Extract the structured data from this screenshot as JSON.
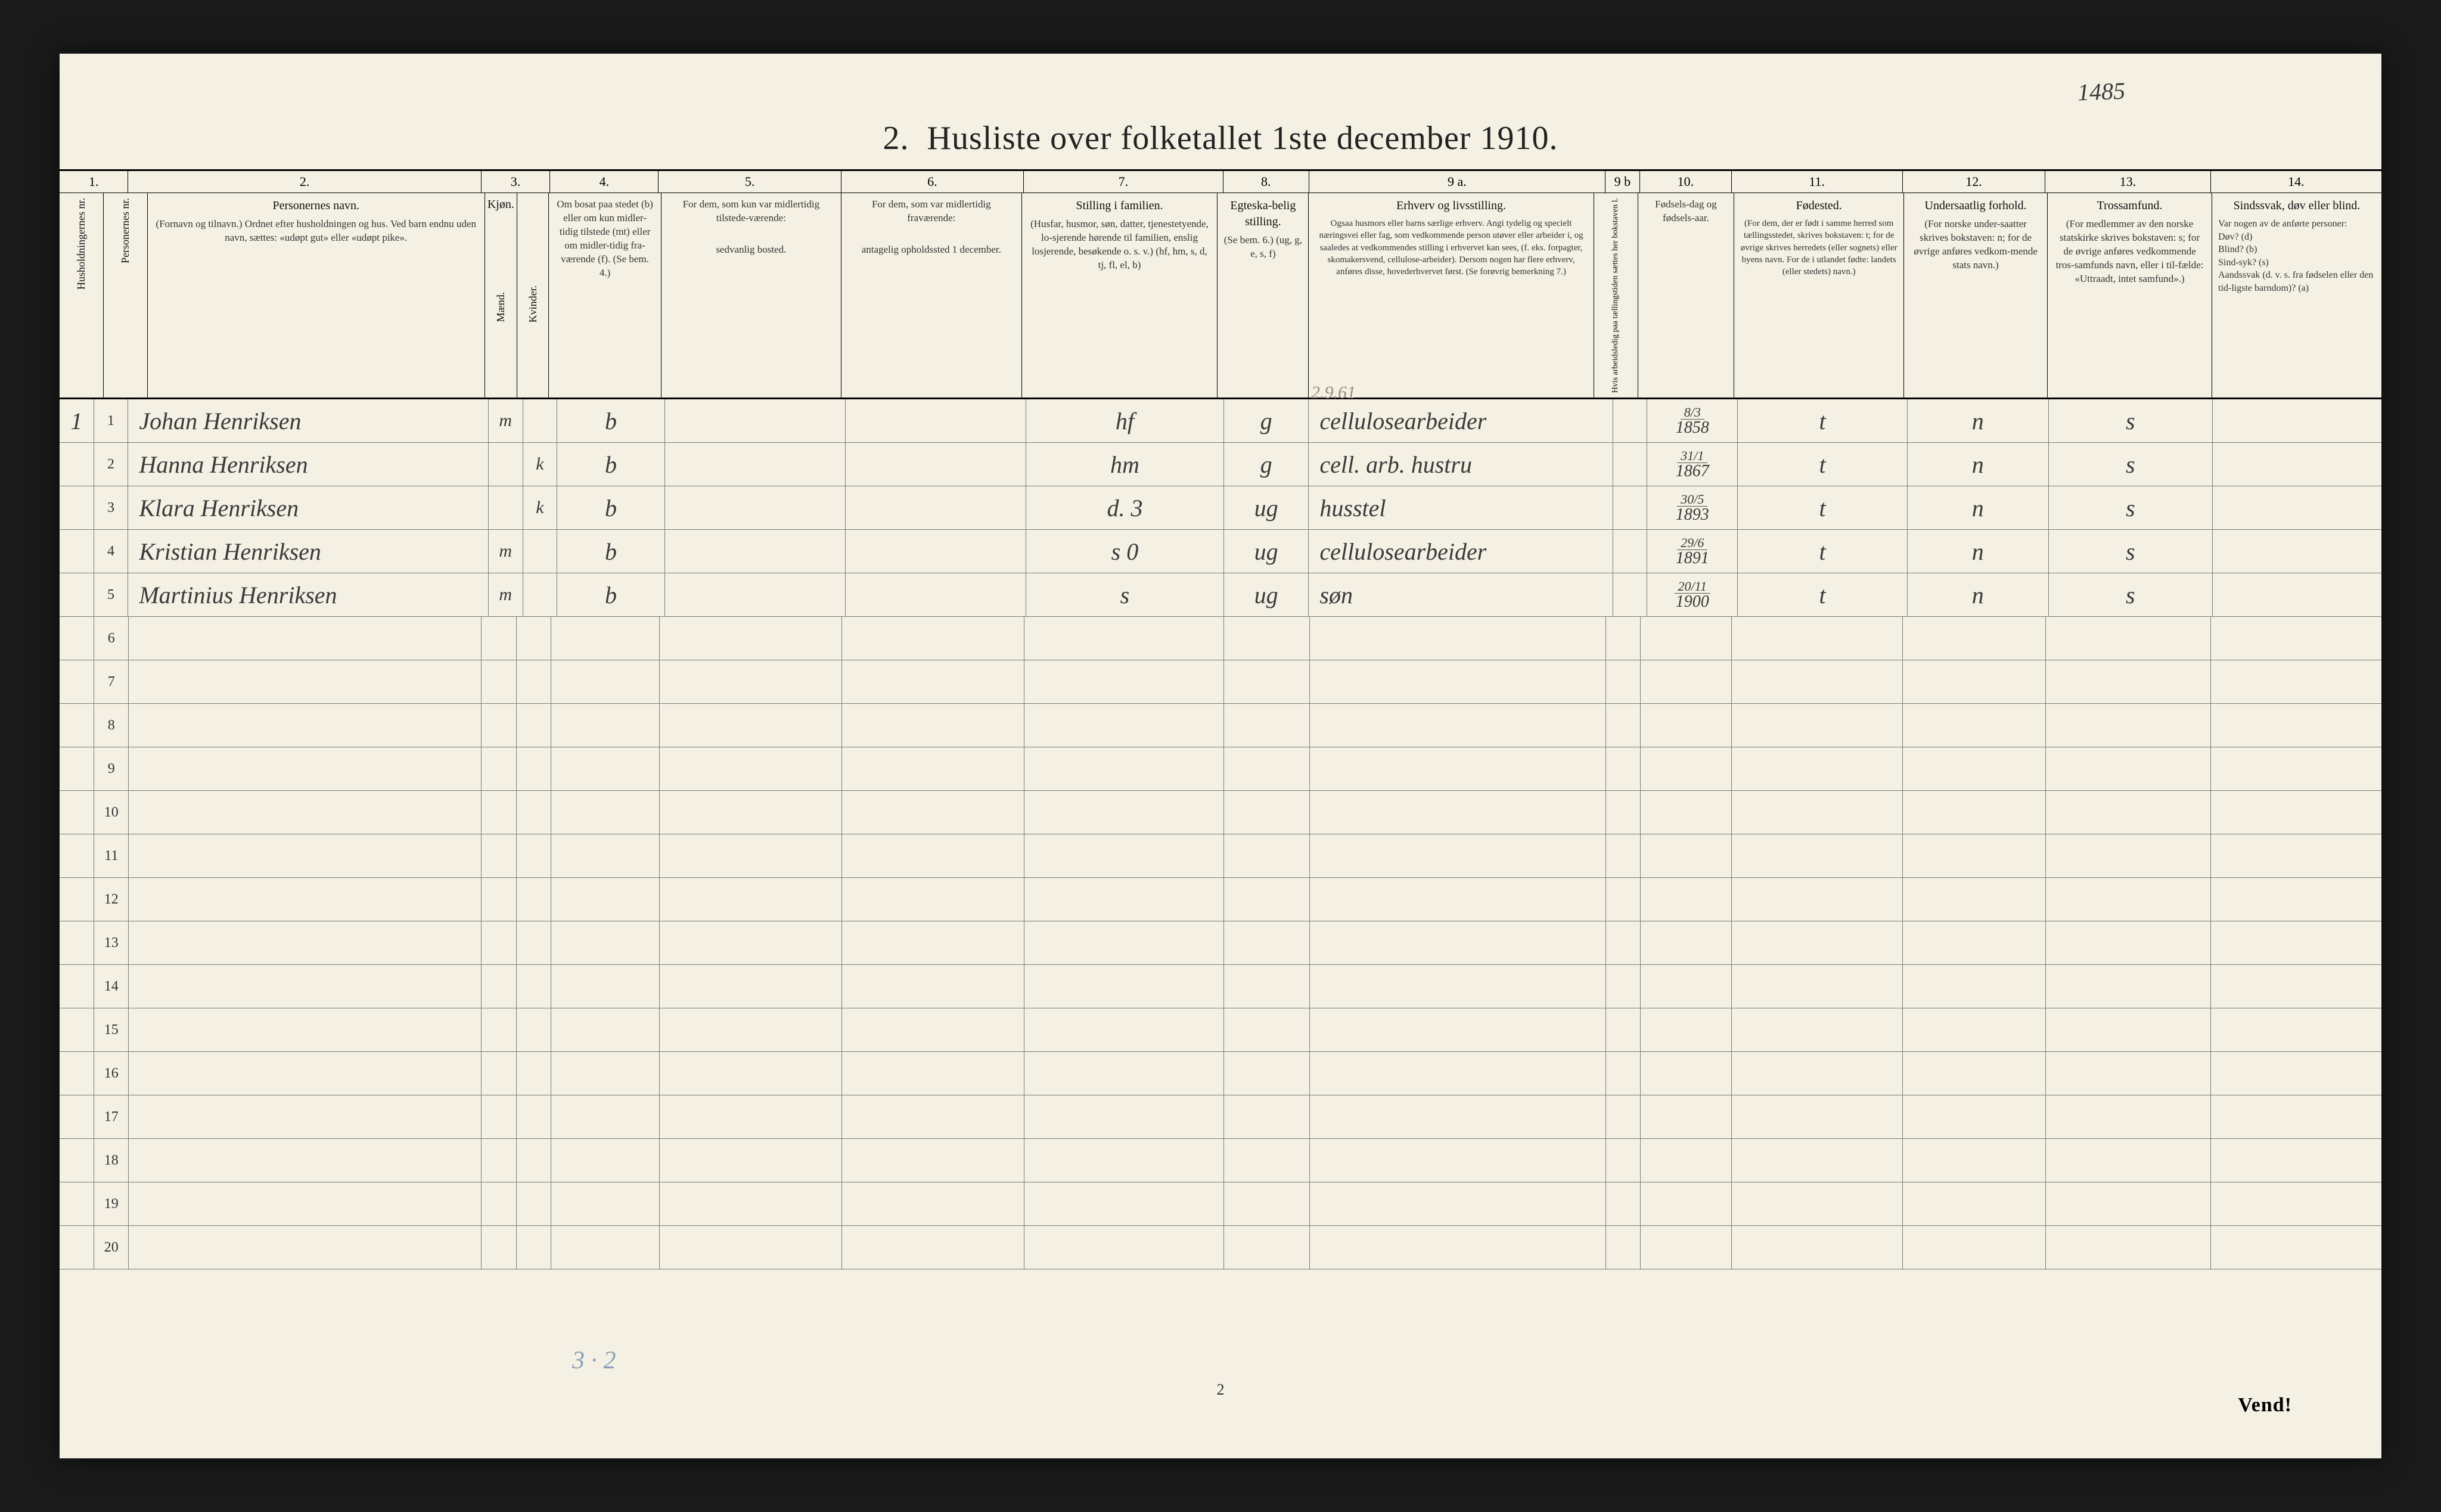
{
  "page": {
    "background_color": "#f4f0e4",
    "frame_color": "#1a1a1a",
    "rule_color": "#7a7a7a",
    "heavy_rule_color": "#000000",
    "handwriting_color": "#3a3a3a",
    "faint_pencil_color": "#9a8c7c",
    "blue_pencil_color": "#8aa0b8"
  },
  "handwritten_top_right": "1485",
  "title_number": "2.",
  "title": "Husliste over folketallet 1ste december 1910.",
  "column_numbers": [
    "1.",
    "2.",
    "3.",
    "4.",
    "5.",
    "6.",
    "7.",
    "8.",
    "9 a.",
    "9 b",
    "10.",
    "11.",
    "12.",
    "13.",
    "14."
  ],
  "headers": {
    "c1a": "Husholdningernes nr.",
    "c1b": "Personernes nr.",
    "c2_title": "Personernes navn.",
    "c2_sub": "(Fornavn og tilnavn.)\nOrdnet efter husholdningen og hus.\nVed barn endnu uden navn, sættes: «udøpt gut» eller «udøpt pike».",
    "c3_title": "Kjøn.",
    "c3_m": "Mænd.",
    "c3_k": "Kvinder.",
    "c3_mk_m": "m.",
    "c3_mk_k": "k.",
    "c4_title": "Om bosat paa stedet (b) eller om kun midler-tidig tilstede (mt) eller om midler-tidig fra-værende (f). (Se bem. 4.)",
    "c5_title": "For dem, som kun var midlertidig tilstede-værende:",
    "c5_sub": "sedvanlig bosted.",
    "c6_title": "For dem, som var midlertidig fraværende:",
    "c6_sub": "antagelig opholdssted 1 december.",
    "c7_title": "Stilling i familien.",
    "c7_sub": "(Husfar, husmor, søn, datter, tjenestetyende, lo-sjerende hørende til familien, enslig losjerende, besøkende o. s. v.)\n(hf, hm, s, d, tj, fl, el, b)",
    "c8_title": "Egteska-belig stilling.",
    "c8_sub": "(Se bem. 6.)\n(ug, g, e, s, f)",
    "c9_title": "Erhverv og livsstilling.",
    "c9_sub": "Ogsaa husmors eller barns særlige erhverv. Angi tydelig og specielt næringsvei eller fag, som vedkommende person utøver eller arbeider i, og saaledes at vedkommendes stilling i erhvervet kan sees, (f. eks. forpagter, skomakersvend, cellulose-arbeider). Dersom nogen har flere erhverv, anføres disse, hovederhvervet først.\n(Se forøvrig bemerkning 7.)",
    "c9b_title": "Hvis arbeidsledig paa tællingstiden sættes her bokstaven l.",
    "c10_title": "Fødsels-dag og fødsels-aar.",
    "c11_title": "Fødested.",
    "c11_sub": "(For dem, der er født i samme herred som tællingsstedet, skrives bokstaven: t; for de øvrige skrives herredets (eller sognets) eller byens navn. For de i utlandet fødte: landets (eller stedets) navn.)",
    "c12_title": "Undersaatlig forhold.",
    "c12_sub": "(For norske under-saatter skrives bokstaven: n; for de øvrige anføres vedkom-mende stats navn.)",
    "c13_title": "Trossamfund.",
    "c13_sub": "(For medlemmer av den norske statskirke skrives bokstaven: s; for de øvrige anføres vedkommende tros-samfunds navn, eller i til-fælde: «Uttraadt, intet samfund».)",
    "c14_title": "Sindssvak, døv eller blind.",
    "c14_sub": "Var nogen av de anførte personer:\nDøv?  (d)\nBlind?  (b)\nSind-syk? (s)\nAandssvak (d. v. s. fra fødselen eller den tid-ligste barndom)? (a)"
  },
  "pencil_above_row1_col9": "2.9.61",
  "rows": [
    {
      "hh": "1",
      "pn": "1",
      "name": "Johan Henriksen",
      "sex": "m",
      "res": "b",
      "c5": "",
      "c6": "",
      "fam": "hf",
      "mar": "g",
      "occ": "cellulosearbeider",
      "c9b": "",
      "dob_top": "8/3",
      "dob_bot": "1858",
      "birthplace": "t",
      "nat": "n",
      "rel": "s",
      "c14": ""
    },
    {
      "hh": "",
      "pn": "2",
      "name": "Hanna Henriksen",
      "sex": "k",
      "res": "b",
      "c5": "",
      "c6": "",
      "fam": "hm",
      "mar": "g",
      "occ": "cell. arb. hustru",
      "c9b": "",
      "dob_top": "31/1",
      "dob_bot": "1867",
      "birthplace": "t",
      "nat": "n",
      "rel": "s",
      "c14": ""
    },
    {
      "hh": "",
      "pn": "3",
      "name": "Klara Henriksen",
      "sex": "k",
      "res": "b",
      "c5": "",
      "c6": "",
      "fam": "d.   3",
      "mar": "ug",
      "occ": "husstel",
      "c9b": "",
      "dob_top": "30/5",
      "dob_bot": "1893",
      "birthplace": "t",
      "nat": "n",
      "rel": "s",
      "c14": ""
    },
    {
      "hh": "",
      "pn": "4",
      "name": "Kristian Henriksen",
      "sex": "m",
      "res": "b",
      "c5": "",
      "c6": "",
      "fam": "s   0",
      "mar": "ug",
      "occ": "cellulosearbeider",
      "c9b": "",
      "dob_top": "29/6",
      "dob_bot": "1891",
      "birthplace": "t",
      "nat": "n",
      "rel": "s",
      "c14": ""
    },
    {
      "hh": "",
      "pn": "5",
      "name": "Martinius Henriksen",
      "sex": "m",
      "res": "b",
      "c5": "",
      "c6": "",
      "fam": "s",
      "mar": "ug",
      "occ": "søn",
      "c9b": "",
      "dob_top": "20/11",
      "dob_bot": "1900",
      "birthplace": "t",
      "nat": "n",
      "rel": "s",
      "c14": ""
    }
  ],
  "empty_row_numbers": [
    "6",
    "7",
    "8",
    "9",
    "10",
    "11",
    "12",
    "13",
    "14",
    "15",
    "16",
    "17",
    "18",
    "19",
    "20"
  ],
  "bottom_tally": "3 · 2",
  "bottom_page_number": "2",
  "vend": "Vend!"
}
